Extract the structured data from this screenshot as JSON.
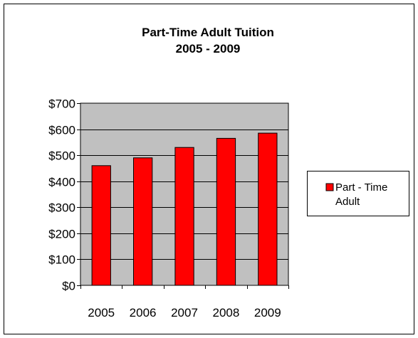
{
  "chart_data": {
    "type": "bar",
    "title": [
      "Part-Time Adult Tuition",
      "2005 - 2009"
    ],
    "categories": [
      "2005",
      "2006",
      "2007",
      "2008",
      "2009"
    ],
    "series": [
      {
        "name": "Part - Time Adult",
        "values": [
          460,
          490,
          530,
          565,
          585
        ]
      }
    ],
    "ylim": [
      0,
      700
    ],
    "y_ticks": [
      0,
      100,
      200,
      300,
      400,
      500,
      600,
      700
    ],
    "y_tick_labels": [
      "$0",
      "$100",
      "$200",
      "$300",
      "$400",
      "$500",
      "$600",
      "$700"
    ],
    "legend_lines": [
      "Part - Time",
      "Adult"
    ],
    "legend_position": "right",
    "grid": true,
    "colors": {
      "bar": "#ff0000",
      "plot_bg": "#c0c0c0",
      "gridline": "#000000",
      "border": "#000000"
    }
  }
}
